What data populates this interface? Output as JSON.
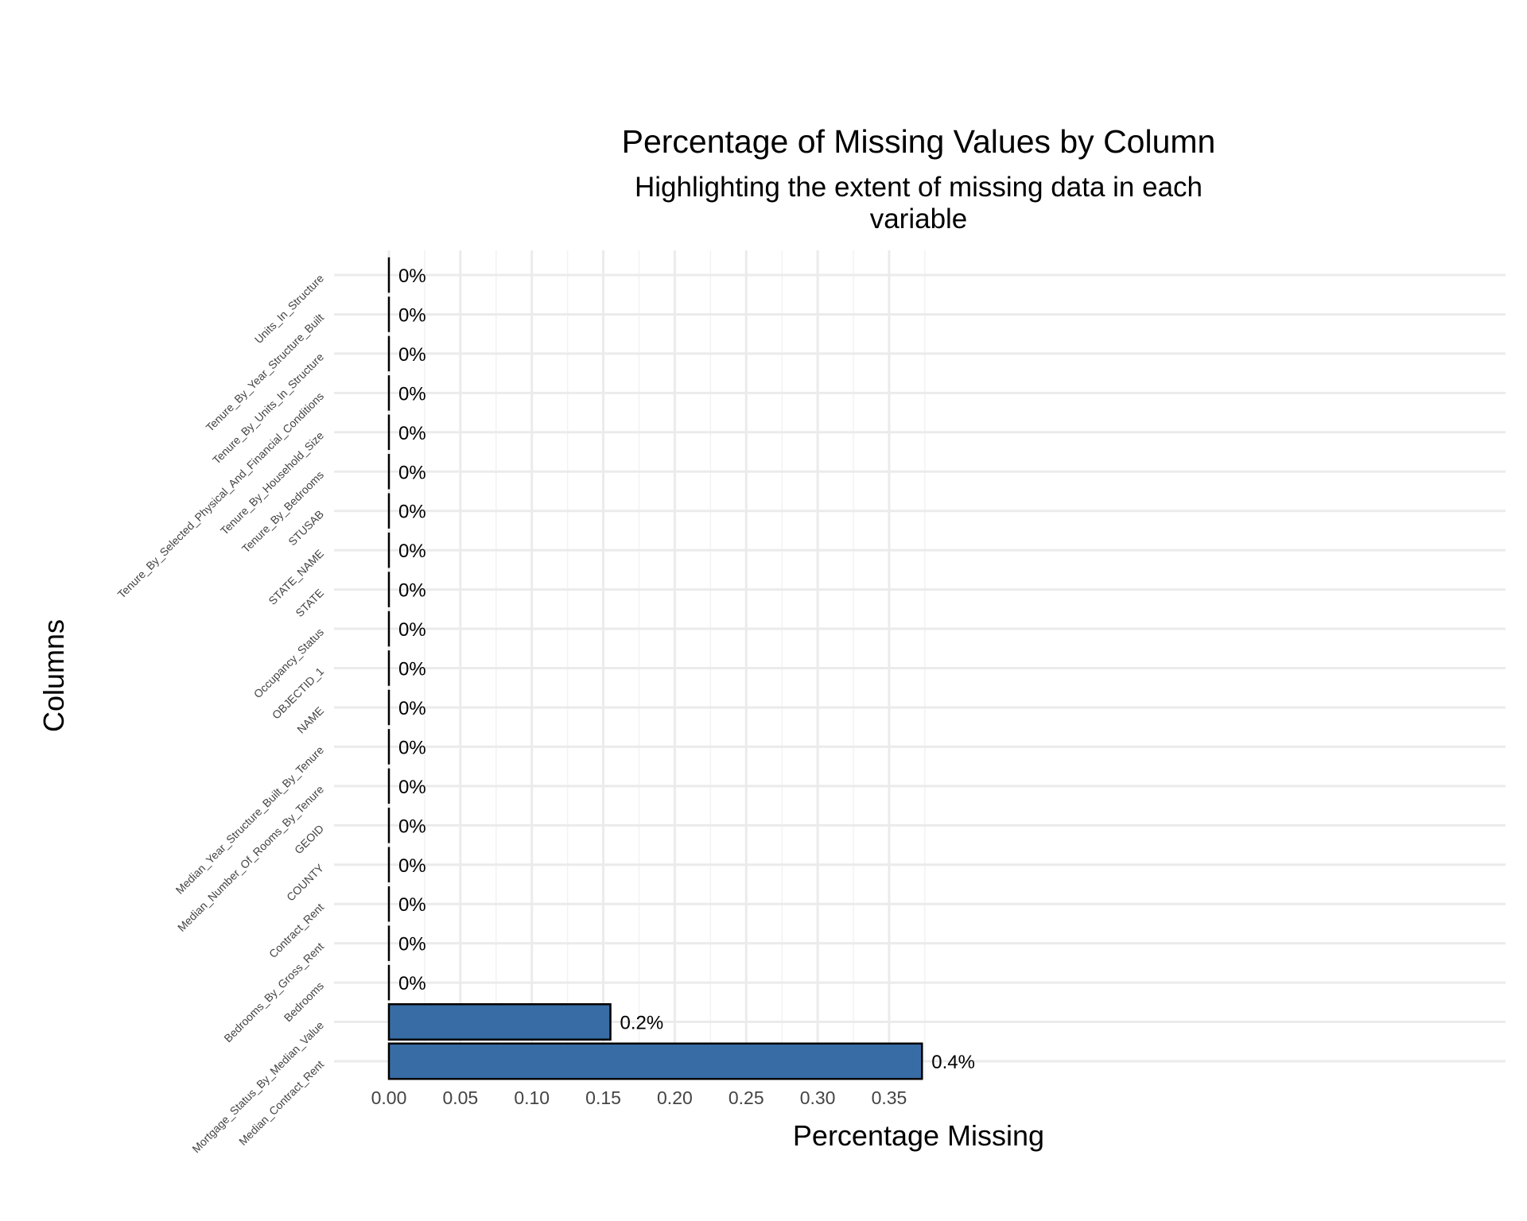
{
  "chart_data": {
    "type": "bar",
    "orientation": "horizontal",
    "title": "Percentage of Missing Values by Column",
    "subtitle_lines": [
      "Highlighting the extent of missing data in each",
      "variable"
    ],
    "xlabel": "Percentage Missing",
    "ylabel": "Columns",
    "xlim": [
      0,
      0.39
    ],
    "x_ticks": [
      "0.00",
      "0.05",
      "0.10",
      "0.15",
      "0.20",
      "0.25",
      "0.30",
      "0.35"
    ],
    "x_tick_values": [
      0,
      0.05,
      0.1,
      0.15,
      0.2,
      0.25,
      0.3,
      0.35
    ],
    "grid": true,
    "legend": "none",
    "bar_color": "#386CA4",
    "bar_border_color": "#000000",
    "categories": [
      "Units_In_Structure",
      "Tenure_By_Year_Structure_Built",
      "Tenure_By_Units_In_Structure",
      "Tenure_By_Selected_Physical_And_Financial_Conditions",
      "Tenure_By_Household_Size",
      "Tenure_By_Bedrooms",
      "STUSAB",
      "STATE_NAME",
      "STATE",
      "Occupancy_Status",
      "OBJECTID_1",
      "NAME",
      "Median_Year_Structure_Built_By_Tenure",
      "Median_Number_Of_Rooms_By_Tenure",
      "GEOID",
      "COUNTY",
      "Contract_Rent",
      "Bedrooms_By_Gross_Rent",
      "Bedrooms",
      "Mortgage_Status_By_Median_Value",
      "Median_Contract_Rent"
    ],
    "values": [
      0,
      0,
      0,
      0,
      0,
      0,
      0,
      0,
      0,
      0,
      0,
      0,
      0,
      0,
      0,
      0,
      0,
      0,
      0,
      0.155,
      0.373
    ],
    "data_labels": [
      "0%",
      "0%",
      "0%",
      "0%",
      "0%",
      "0%",
      "0%",
      "0%",
      "0%",
      "0%",
      "0%",
      "0%",
      "0%",
      "0%",
      "0%",
      "0%",
      "0%",
      "0%",
      "0%",
      "0.2%",
      "0.4%"
    ]
  }
}
